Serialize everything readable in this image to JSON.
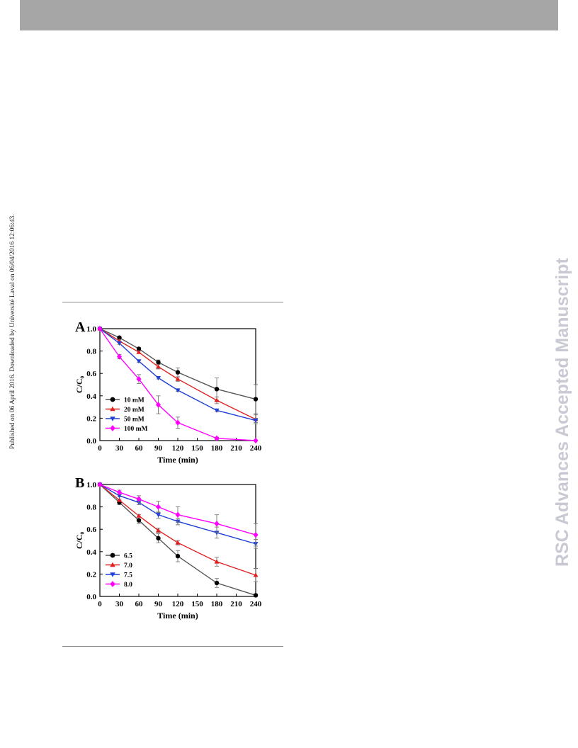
{
  "header": {},
  "side_note": "Published on 06 April 2016. Downloaded by Université Laval on 06/04/2016 12:06:43.",
  "watermark": "RSC Advances Accepted Manuscript",
  "chart_data": [
    {
      "type": "line",
      "panel_label": "A",
      "xlabel": "Time (min)",
      "ylabel": "C/C₀",
      "xlim": [
        0,
        240
      ],
      "ylim": [
        0,
        1.0
      ],
      "xticks": [
        0,
        30,
        60,
        90,
        120,
        150,
        180,
        210,
        240
      ],
      "yticks": [
        0.0,
        0.2,
        0.4,
        0.6,
        0.8,
        1.0
      ],
      "legend_position": "bottom-left",
      "x": [
        0,
        30,
        60,
        90,
        120,
        180,
        240
      ],
      "series": [
        {
          "name": "10 mM",
          "color": "#000000",
          "marker": "circle",
          "line_color": "#555555",
          "values": [
            1.0,
            0.92,
            0.82,
            0.7,
            0.61,
            0.46,
            0.37
          ],
          "errors": [
            0,
            0.01,
            0.01,
            0.02,
            0.04,
            0.1,
            0.13
          ]
        },
        {
          "name": "20 mM",
          "color": "#e02020",
          "marker": "triangle-up",
          "line_color": "#e02020",
          "values": [
            1.0,
            0.89,
            0.79,
            0.66,
            0.55,
            0.36,
            0.19
          ],
          "errors": [
            0,
            0.01,
            0.01,
            0.02,
            0.02,
            0.03,
            0.04
          ]
        },
        {
          "name": "50 mM",
          "color": "#1f3fd6",
          "marker": "triangle-down",
          "line_color": "#1f3fd6",
          "values": [
            1.0,
            0.87,
            0.71,
            0.56,
            0.45,
            0.27,
            0.18
          ],
          "errors": [
            0,
            0.01,
            0.01,
            0.01,
            0.01,
            0.01,
            0.02
          ]
        },
        {
          "name": "100 mM",
          "color": "#ff00ff",
          "marker": "diamond",
          "line_color": "#ff00ff",
          "values": [
            1.0,
            0.75,
            0.55,
            0.32,
            0.16,
            0.02,
            0.0
          ],
          "errors": [
            0,
            0.02,
            0.04,
            0.08,
            0.05,
            0.01,
            0.005
          ]
        }
      ]
    },
    {
      "type": "line",
      "panel_label": "B",
      "xlabel": "Time (min)",
      "ylabel": "C/C₀",
      "xlim": [
        0,
        240
      ],
      "ylim": [
        0,
        1.0
      ],
      "xticks": [
        0,
        30,
        60,
        90,
        120,
        150,
        180,
        210,
        240
      ],
      "yticks": [
        0.0,
        0.2,
        0.4,
        0.6,
        0.8,
        1.0
      ],
      "legend_position": "bottom-left",
      "x": [
        0,
        30,
        60,
        90,
        120,
        180,
        240
      ],
      "series": [
        {
          "name": "6.5",
          "color": "#000000",
          "marker": "circle",
          "line_color": "#555555",
          "values": [
            1.0,
            0.84,
            0.68,
            0.52,
            0.36,
            0.12,
            0.01
          ],
          "errors": [
            0,
            0.02,
            0.03,
            0.04,
            0.05,
            0.04,
            0.01
          ]
        },
        {
          "name": "7.0",
          "color": "#e02020",
          "marker": "triangle-up",
          "line_color": "#e02020",
          "values": [
            1.0,
            0.86,
            0.72,
            0.59,
            0.48,
            0.31,
            0.19
          ],
          "errors": [
            0,
            0.01,
            0.01,
            0.02,
            0.02,
            0.04,
            0.06
          ]
        },
        {
          "name": "7.5",
          "color": "#1f3fd6",
          "marker": "triangle-down",
          "line_color": "#1f3fd6",
          "values": [
            1.0,
            0.9,
            0.84,
            0.73,
            0.67,
            0.57,
            0.47
          ],
          "errors": [
            0,
            0.01,
            0.02,
            0.03,
            0.03,
            0.05,
            0.04
          ]
        },
        {
          "name": "8.0",
          "color": "#ff00ff",
          "marker": "diamond",
          "line_color": "#ff00ff",
          "values": [
            1.0,
            0.93,
            0.87,
            0.8,
            0.73,
            0.65,
            0.55
          ],
          "errors": [
            0,
            0.02,
            0.03,
            0.05,
            0.07,
            0.08,
            0.1
          ]
        }
      ]
    }
  ]
}
